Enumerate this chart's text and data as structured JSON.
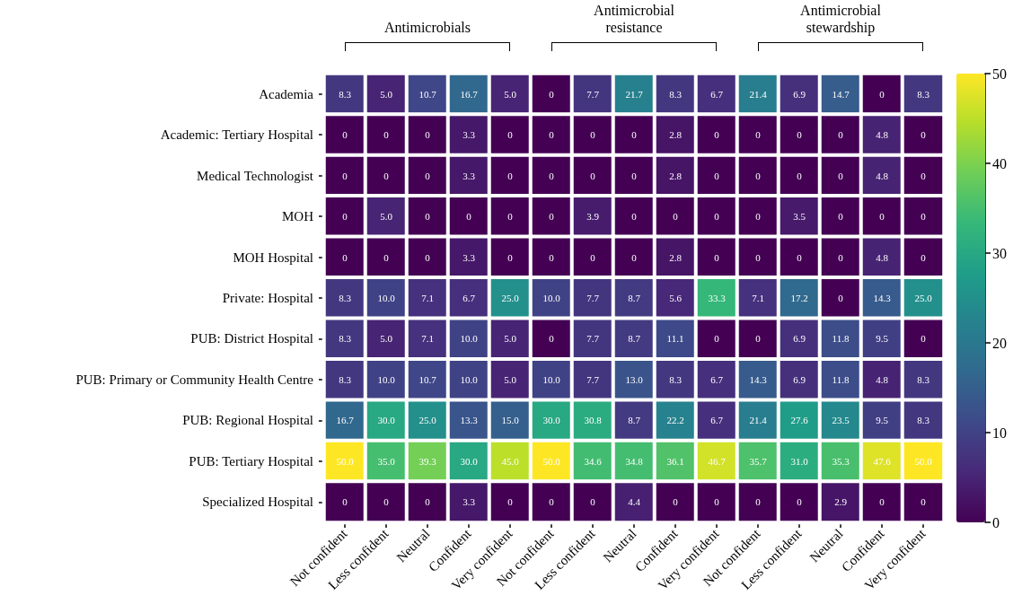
{
  "chart_data": {
    "type": "heatmap",
    "categories": [
      "Not confident",
      "Less confident",
      "Neutral",
      "Confident",
      "Very confident",
      "Not confident",
      "Less confident",
      "Neutral",
      "Confident",
      "Very confident",
      "Not confident",
      "Less confident",
      "Neutral",
      "Confident",
      "Very confident"
    ],
    "y_categories": [
      "Academia",
      "Academic: Tertiary Hospital",
      "Medical Technologist",
      "MOH",
      "MOH Hospital",
      "Private: Hospital",
      "PUB: District Hospital",
      "PUB: Primary or Community Health Centre",
      "PUB: Regional Hospital",
      "PUB: Tertiary Hospital",
      "Specialized Hospital"
    ],
    "cells": [
      [
        8.3,
        5.0,
        10.7,
        16.7,
        5.0,
        0,
        7.7,
        21.7,
        8.3,
        6.7,
        21.4,
        6.9,
        14.7,
        0,
        8.3
      ],
      [
        0,
        0,
        0,
        3.3,
        0,
        0,
        0,
        0,
        2.8,
        0,
        0,
        0,
        0,
        4.8,
        0
      ],
      [
        0,
        0,
        0,
        3.3,
        0,
        0,
        0,
        0,
        2.8,
        0,
        0,
        0,
        0,
        4.8,
        0
      ],
      [
        0,
        5.0,
        0,
        0,
        0,
        0,
        3.9,
        0,
        0,
        0,
        0,
        3.5,
        0,
        0,
        0
      ],
      [
        0,
        0,
        0,
        3.3,
        0,
        0,
        0,
        0,
        2.8,
        0,
        0,
        0,
        0,
        4.8,
        0
      ],
      [
        8.3,
        10.0,
        7.1,
        6.7,
        25.0,
        10.0,
        7.7,
        8.7,
        5.6,
        33.3,
        7.1,
        17.2,
        0,
        14.3,
        25.0
      ],
      [
        8.3,
        5.0,
        7.1,
        10.0,
        5.0,
        0,
        7.7,
        8.7,
        11.1,
        0,
        0,
        6.9,
        11.8,
        9.5,
        0
      ],
      [
        8.3,
        10.0,
        10.7,
        10.0,
        5.0,
        10.0,
        7.7,
        13.0,
        8.3,
        6.7,
        14.3,
        6.9,
        11.8,
        4.8,
        8.3
      ],
      [
        16.7,
        30.0,
        25.0,
        13.3,
        15.0,
        30.0,
        30.8,
        8.7,
        22.2,
        6.7,
        21.4,
        27.6,
        23.5,
        9.5,
        8.3
      ],
      [
        50.0,
        35.0,
        39.3,
        30.0,
        45.0,
        50.0,
        34.6,
        34.8,
        36.1,
        46.7,
        35.7,
        31.0,
        35.3,
        47.6,
        50.0
      ],
      [
        0,
        0,
        0,
        3.3,
        0,
        0,
        0,
        4.4,
        0,
        0,
        0,
        0,
        2.9,
        0,
        0
      ]
    ],
    "cell_labels": [
      [
        "8.3",
        "5.0",
        "10.7",
        "16.7",
        "5.0",
        "0",
        "7.7",
        "21.7",
        "8.3",
        "6.7",
        "21.4",
        "6.9",
        "14.7",
        "0",
        "8.3"
      ],
      [
        "0",
        "0",
        "0",
        "3.3",
        "0",
        "0",
        "0",
        "0",
        "2.8",
        "0",
        "0",
        "0",
        "0",
        "4.8",
        "0"
      ],
      [
        "0",
        "0",
        "0",
        "3.3",
        "0",
        "0",
        "0",
        "0",
        "2.8",
        "0",
        "0",
        "0",
        "0",
        "4.8",
        "0"
      ],
      [
        "0",
        "5.0",
        "0",
        "0",
        "0",
        "0",
        "3.9",
        "0",
        "0",
        "0",
        "0",
        "3.5",
        "0",
        "0",
        "0"
      ],
      [
        "0",
        "0",
        "0",
        "3.3",
        "0",
        "0",
        "0",
        "0",
        "2.8",
        "0",
        "0",
        "0",
        "0",
        "4.8",
        "0"
      ],
      [
        "8.3",
        "10.0",
        "7.1",
        "6.7",
        "25.0",
        "10.0",
        "7.7",
        "8.7",
        "5.6",
        "33.3",
        "7.1",
        "17.2",
        "0",
        "14.3",
        "25.0"
      ],
      [
        "8.3",
        "5.0",
        "7.1",
        "10.0",
        "5.0",
        "0",
        "7.7",
        "8.7",
        "11.1",
        "0",
        "0",
        "6.9",
        "11.8",
        "9.5",
        "0"
      ],
      [
        "8.3",
        "10.0",
        "10.7",
        "10.0",
        "5.0",
        "10.0",
        "7.7",
        "13.0",
        "8.3",
        "6.7",
        "14.3",
        "6.9",
        "11.8",
        "4.8",
        "8.3"
      ],
      [
        "16.7",
        "30.0",
        "25.0",
        "13.3",
        "15.0",
        "30.0",
        "30.8",
        "8.7",
        "22.2",
        "6.7",
        "21.4",
        "27.6",
        "23.5",
        "9.5",
        "8.3"
      ],
      [
        "50.0",
        "35.0",
        "39.3",
        "30.0",
        "45.0",
        "50.0",
        "34.6",
        "34.8",
        "36.1",
        "46.7",
        "35.7",
        "31.0",
        "35.3",
        "47.6",
        "50.0"
      ],
      [
        "0",
        "0",
        "0",
        "3.3",
        "0",
        "0",
        "0",
        "4.4",
        "0",
        "0",
        "0",
        "0",
        "2.9",
        "0",
        "0"
      ]
    ],
    "clim": [
      0,
      50
    ],
    "cticks": [
      0,
      10,
      20,
      30,
      40,
      50
    ],
    "annotations": [
      "Antimicrobials",
      "Antimicrobial resistance",
      "Antimicrobial stewardship"
    ]
  }
}
